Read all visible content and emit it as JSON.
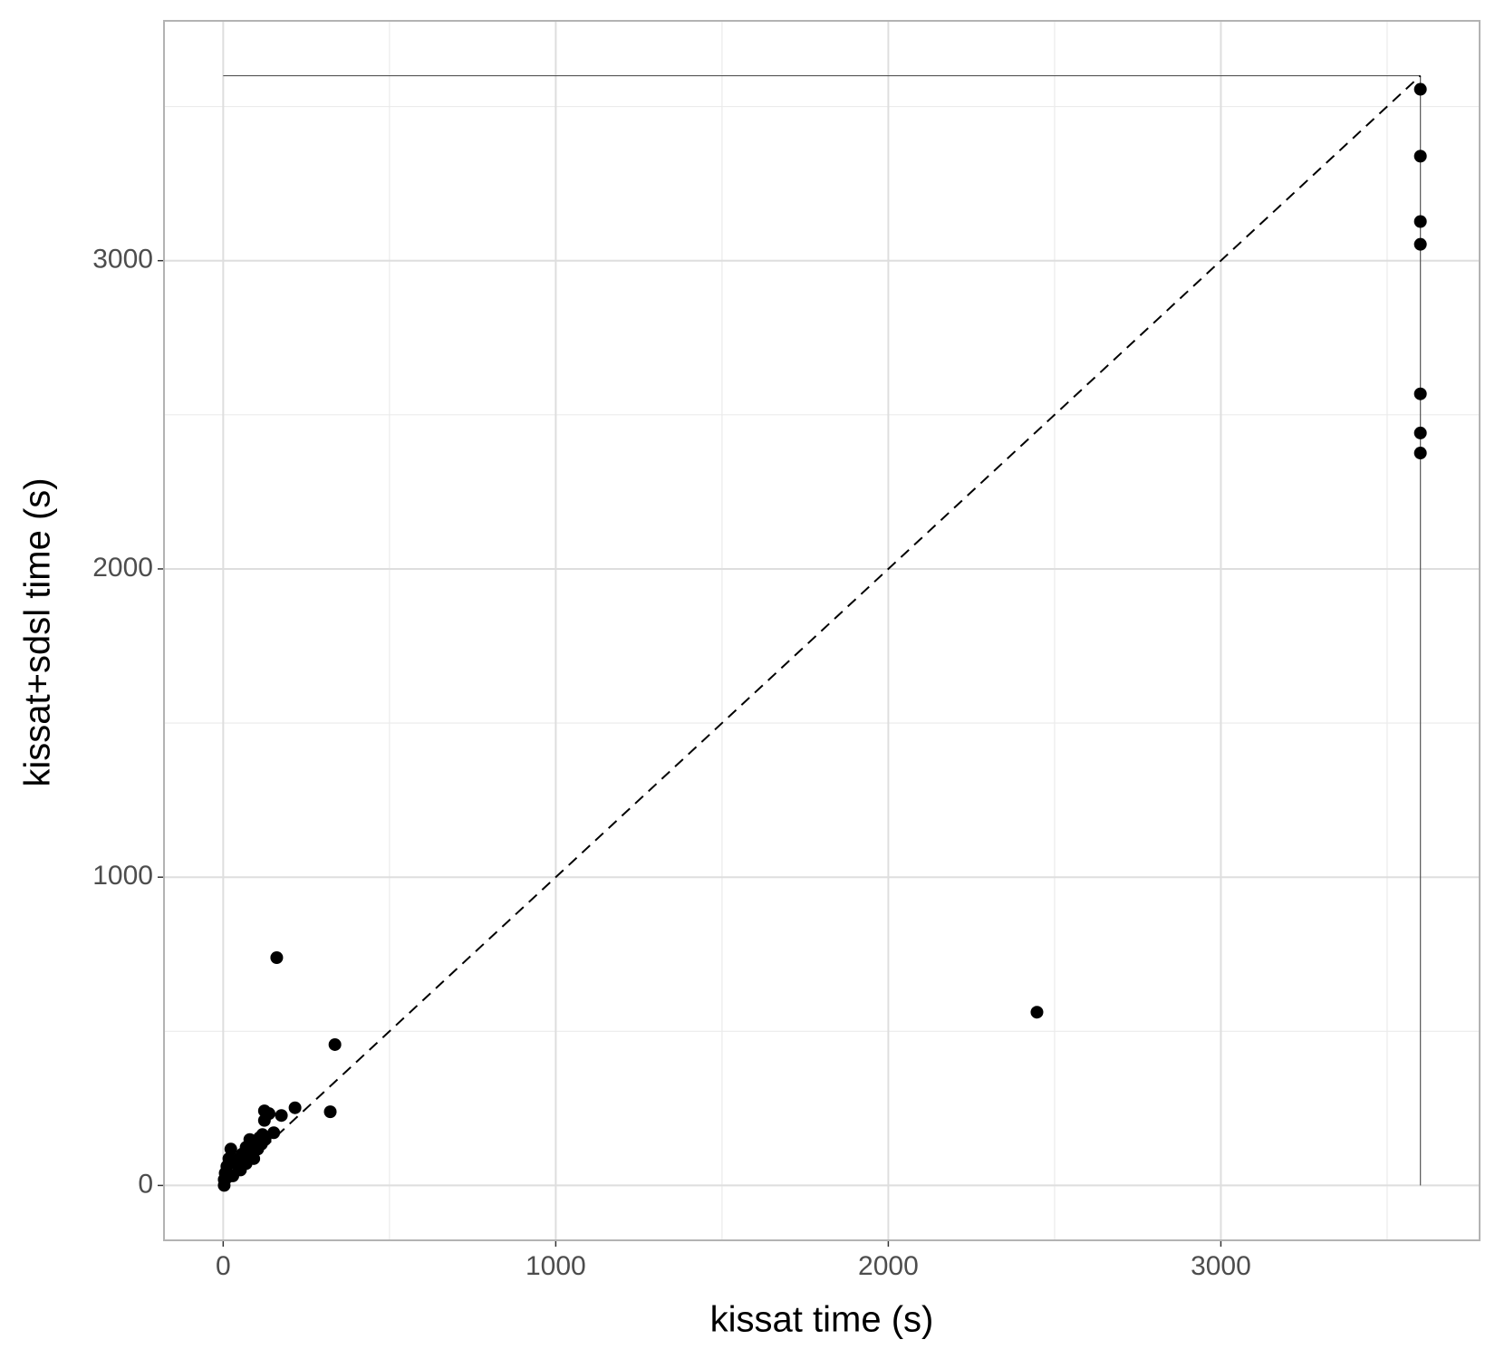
{
  "chart_data": {
    "type": "scatter",
    "x_label": "kissat time (s)",
    "y_label": "kissat+sdsl time (s)",
    "xlim": [
      -178,
      3778
    ],
    "ylim": [
      -178,
      3778
    ],
    "xticks": [
      0,
      1000,
      2000,
      3000
    ],
    "yticks": [
      0,
      1000,
      2000,
      3000
    ],
    "xminor_ticks": [
      500,
      1500,
      2500,
      3500
    ],
    "yminor_ticks": [
      500,
      1500,
      2500,
      3500
    ],
    "grid": true,
    "color": "#000000",
    "limit_lines": {
      "x": 3600,
      "y": 3600
    },
    "identity_line": true,
    "x": [
      3600,
      3600,
      3600,
      3600,
      3600,
      3600,
      3600,
      2447,
      161,
      336,
      322,
      216,
      175,
      152,
      124,
      138,
      124,
      3,
      3,
      6,
      11,
      17,
      23,
      35,
      46,
      57,
      69,
      80,
      86,
      98,
      109,
      118,
      126,
      52,
      29,
      11,
      69,
      92,
      104,
      115
    ],
    "y": [
      3556,
      3339,
      3127,
      3053,
      2568,
      2441,
      2376,
      562,
      739,
      457,
      239,
      252,
      227,
      171,
      242,
      233,
      211,
      0,
      19,
      40,
      62,
      87,
      118,
      71,
      87,
      102,
      124,
      149,
      102,
      134,
      155,
      165,
      149,
      50,
      31,
      25,
      71,
      87,
      118,
      134
    ]
  }
}
